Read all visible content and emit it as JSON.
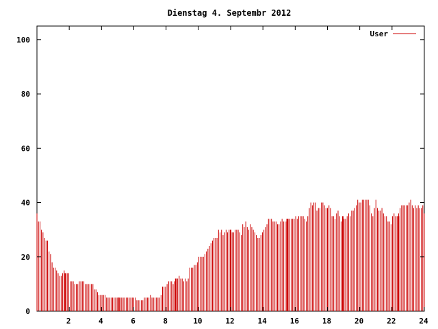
{
  "chart_data": {
    "type": "bar",
    "title": "Dienstag 4. Septembr 2012",
    "xlabel": "",
    "ylabel": "",
    "xlim": [
      0,
      24
    ],
    "ylim": [
      0,
      105
    ],
    "xticks": [
      2,
      4,
      6,
      8,
      10,
      12,
      14,
      16,
      18,
      20,
      22,
      24
    ],
    "xtick_labels": [
      "2",
      "4",
      "6",
      "8",
      "10",
      "12",
      "14",
      "16",
      "18",
      "20",
      "22",
      "24"
    ],
    "yticks": [
      0,
      20,
      40,
      60,
      80,
      100
    ],
    "ytick_labels": [
      "0",
      "20",
      "40",
      "60",
      "80",
      "100"
    ],
    "grid": false,
    "legend": {
      "placement": "top-right"
    },
    "series": [
      {
        "name": "User",
        "color": "#cc0000",
        "x_step_hours": 0.0833,
        "values": [
          36,
          33,
          33,
          30,
          29,
          27,
          26,
          26,
          22,
          21,
          18,
          16,
          16,
          15,
          14,
          13,
          13,
          14,
          15,
          14,
          14,
          14,
          11,
          11,
          11,
          10,
          10,
          10,
          11,
          11,
          11,
          11,
          10,
          10,
          10,
          10,
          10,
          10,
          8,
          8,
          7,
          6,
          6,
          6,
          6,
          6,
          5,
          5,
          5,
          5,
          5,
          5,
          5,
          5,
          5,
          5,
          5,
          5,
          5,
          5,
          5,
          5,
          5,
          5,
          5,
          5,
          4,
          4,
          4,
          4,
          4,
          5,
          5,
          5,
          5,
          6,
          5,
          5,
          5,
          5,
          5,
          5,
          6,
          9,
          9,
          9,
          10,
          11,
          11,
          11,
          10,
          11,
          12,
          12,
          13,
          12,
          12,
          11,
          12,
          11,
          12,
          16,
          16,
          16,
          17,
          17,
          18,
          20,
          20,
          20,
          20,
          21,
          22,
          23,
          24,
          25,
          26,
          27,
          27,
          27,
          30,
          29,
          30,
          28,
          29,
          30,
          29,
          30,
          30,
          29,
          29,
          30,
          30,
          30,
          29,
          28,
          32,
          31,
          33,
          31,
          30,
          32,
          31,
          30,
          29,
          28,
          27,
          27,
          28,
          29,
          30,
          31,
          32,
          34,
          34,
          34,
          33,
          33,
          33,
          32,
          32,
          33,
          34,
          33,
          33,
          33,
          34,
          34,
          34,
          34,
          34,
          35,
          34,
          35,
          35,
          35,
          35,
          34,
          33,
          35,
          38,
          40,
          39,
          40,
          40,
          37,
          38,
          38,
          40,
          40,
          39,
          38,
          38,
          39,
          38,
          35,
          35,
          34,
          36,
          37,
          35,
          33,
          34,
          34,
          34,
          35,
          36,
          35,
          37,
          37,
          38,
          39,
          41,
          40,
          40,
          41,
          41,
          41,
          41,
          41,
          39,
          36,
          35,
          38,
          41,
          38,
          37,
          37,
          38,
          36,
          35,
          35,
          33,
          33,
          32,
          35,
          36,
          35,
          35,
          36,
          38,
          39,
          39,
          39,
          39,
          39,
          40,
          41,
          39,
          38,
          39,
          38,
          39,
          38,
          38,
          39,
          36
        ],
        "highlight_bars": [
          {
            "x": 1.75,
            "value": 14
          },
          {
            "x": 5.08,
            "value": 5
          },
          {
            "x": 8.6,
            "value": 12
          },
          {
            "x": 12.0,
            "value": 30
          },
          {
            "x": 15.5,
            "value": 34
          },
          {
            "x": 18.95,
            "value": 35
          },
          {
            "x": 22.4,
            "value": 35
          }
        ]
      }
    ]
  }
}
